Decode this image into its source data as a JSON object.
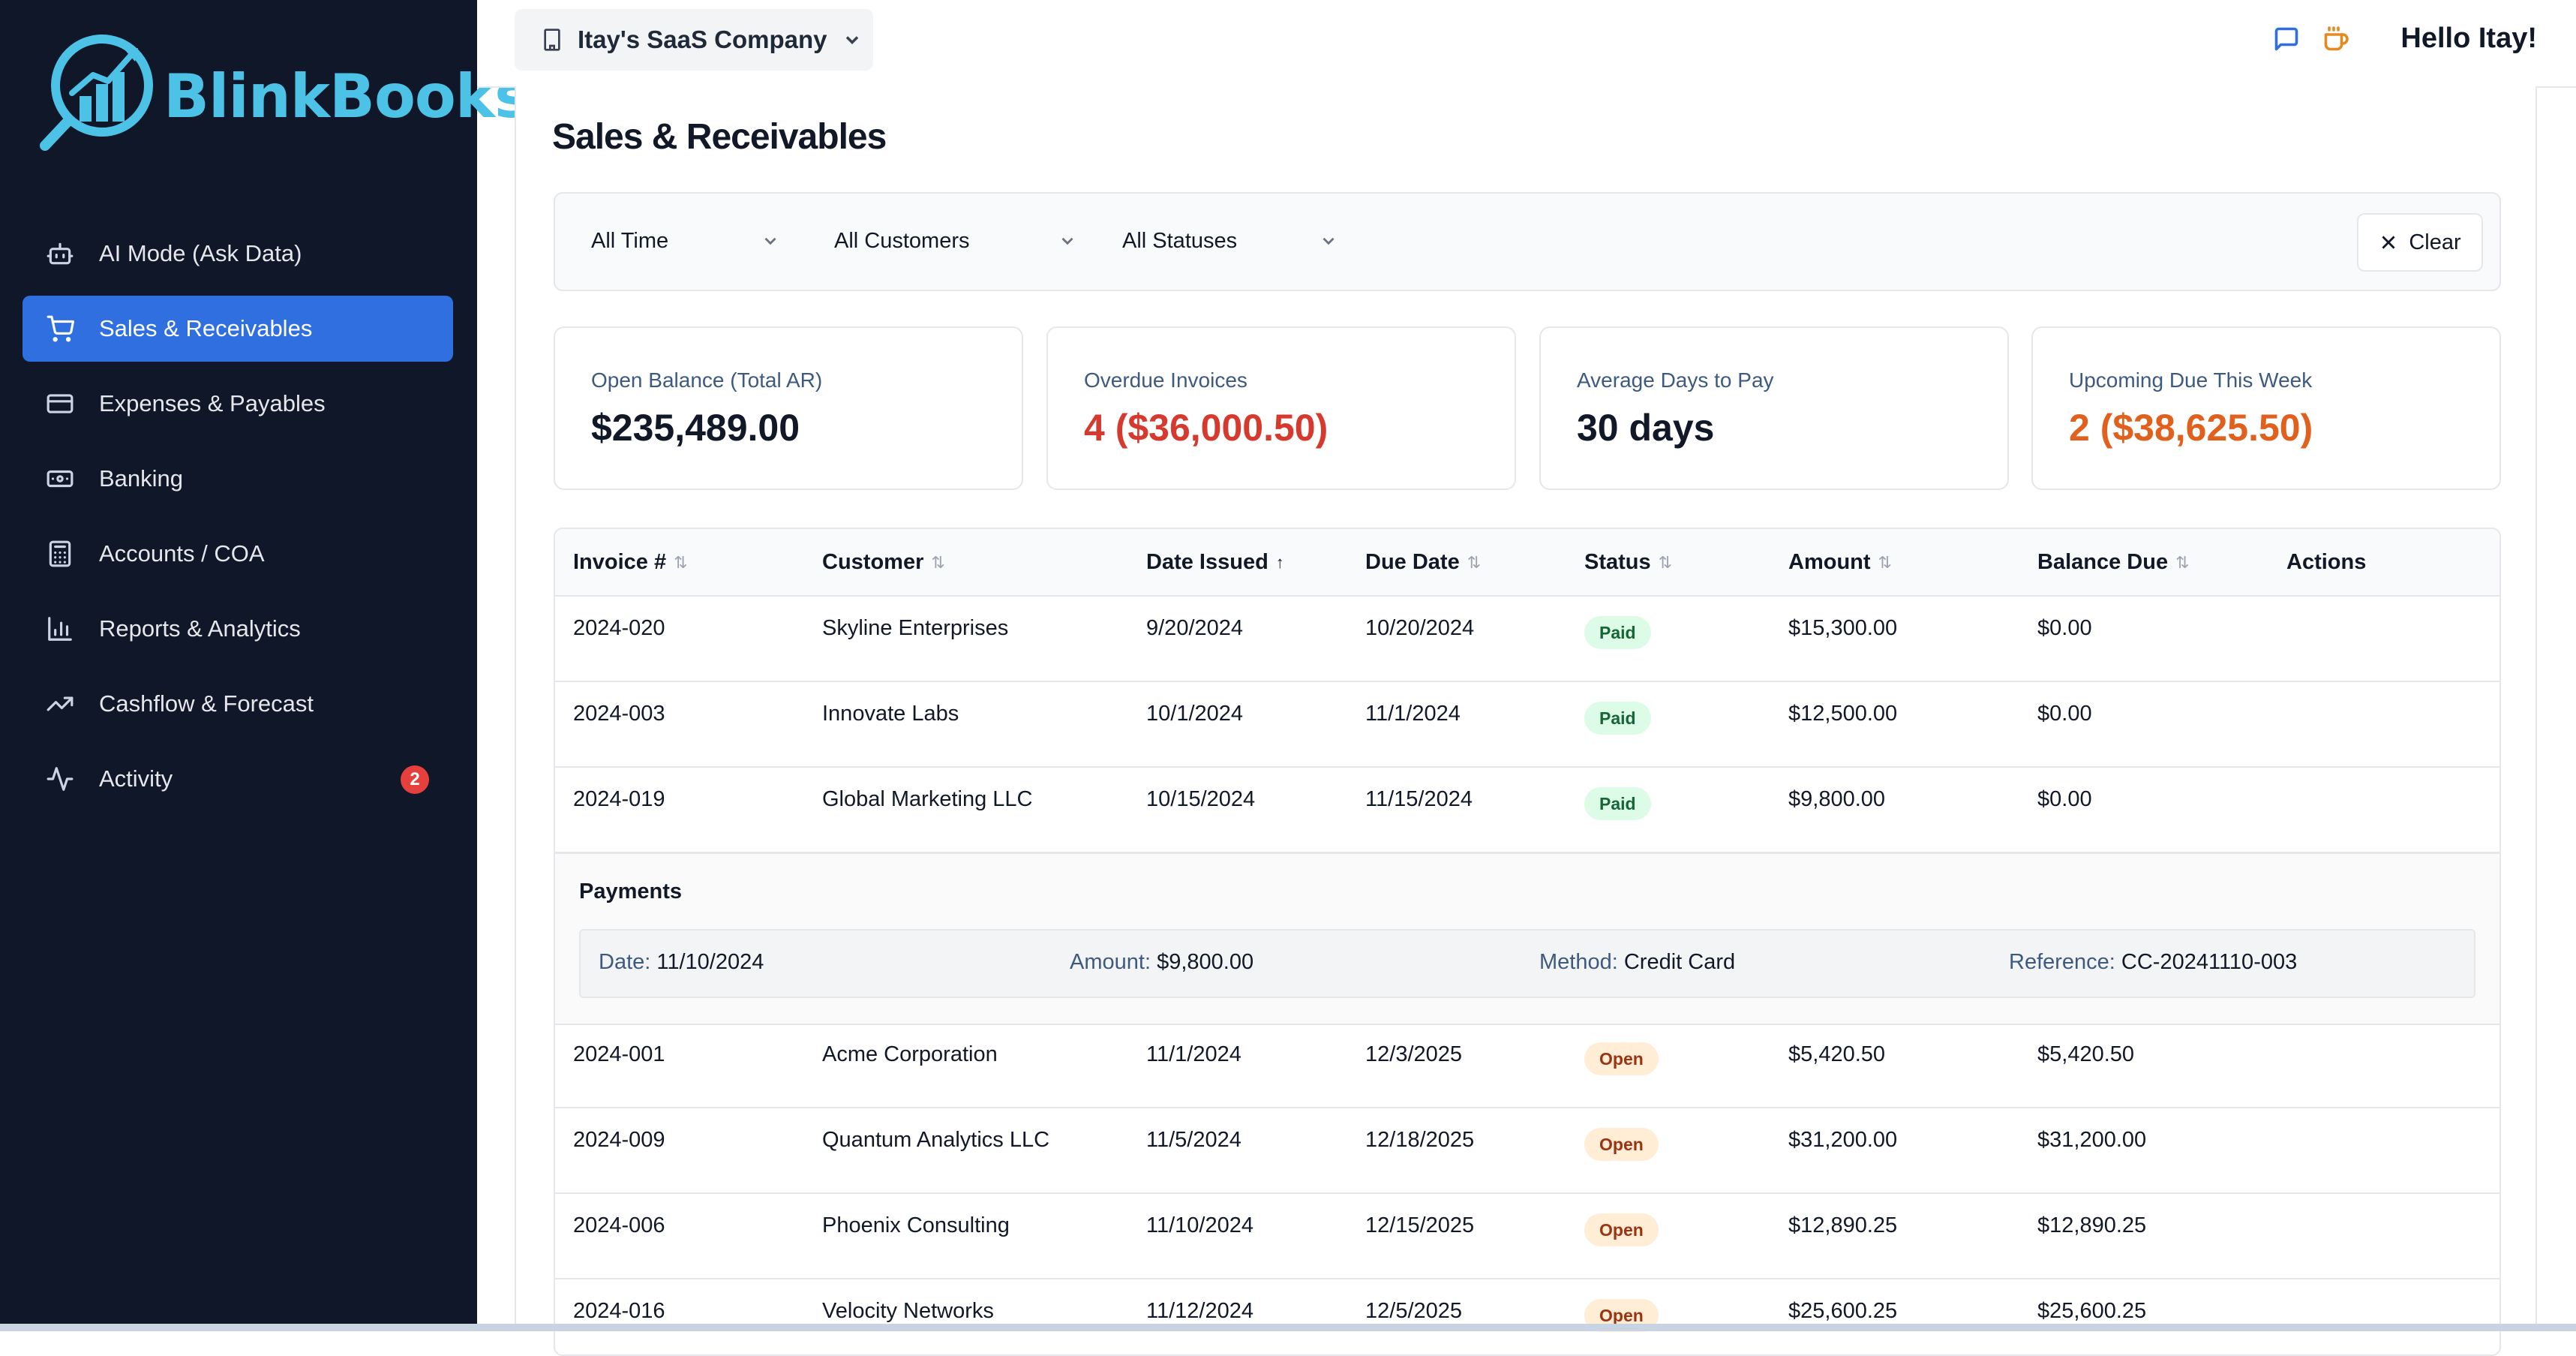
{
  "sidebar": {
    "logo_text": "BlinkBooks",
    "items": [
      {
        "label": "AI Mode (Ask Data)",
        "icon": "robot-icon"
      },
      {
        "label": "Sales & Receivables",
        "icon": "cart-icon",
        "active": true
      },
      {
        "label": "Expenses & Payables",
        "icon": "credit-card-icon"
      },
      {
        "label": "Banking",
        "icon": "banknote-icon"
      },
      {
        "label": "Accounts / COA",
        "icon": "calculator-icon"
      },
      {
        "label": "Reports & Analytics",
        "icon": "bar-chart-icon"
      },
      {
        "label": "Cashflow & Forecast",
        "icon": "trending-up-icon"
      },
      {
        "label": "Activity",
        "icon": "activity-icon",
        "badge": "2"
      }
    ]
  },
  "topbar": {
    "company": "Itay's SaaS Company",
    "greeting": "Hello Itay!"
  },
  "page": {
    "title": "Sales & Receivables",
    "filters": {
      "time": "All Time",
      "customers": "All Customers",
      "statuses": "All Statuses",
      "clear": "Clear"
    }
  },
  "kpis": [
    {
      "label": "Open Balance (Total AR)",
      "value": "$235,489.00"
    },
    {
      "label": "Overdue Invoices",
      "value": "4 ($36,000.50)",
      "color": "#d63a2f"
    },
    {
      "label": "Average Days to Pay",
      "value": "30 days"
    },
    {
      "label": "Upcoming Due This Week",
      "value": "2 ($38,625.50)",
      "color": "#e0601d"
    }
  ],
  "table": {
    "headers": {
      "invoice": "Invoice #",
      "customer": "Customer",
      "date_issued": "Date Issued",
      "due_date": "Due Date",
      "status": "Status",
      "amount": "Amount",
      "balance": "Balance Due",
      "actions": "Actions"
    },
    "rows": [
      {
        "invoice": "2024-020",
        "customer": "Skyline Enterprises",
        "issued": "9/20/2024",
        "due": "10/20/2024",
        "status": "Paid",
        "amount": "$15,300.00",
        "balance": "$0.00"
      },
      {
        "invoice": "2024-003",
        "customer": "Innovate Labs",
        "issued": "10/1/2024",
        "due": "11/1/2024",
        "status": "Paid",
        "amount": "$12,500.00",
        "balance": "$0.00"
      },
      {
        "invoice": "2024-019",
        "customer": "Global Marketing LLC",
        "issued": "10/15/2024",
        "due": "11/15/2024",
        "status": "Paid",
        "amount": "$9,800.00",
        "balance": "$0.00"
      },
      {
        "invoice": "2024-001",
        "customer": "Acme Corporation",
        "issued": "11/1/2024",
        "due": "12/3/2025",
        "status": "Open",
        "amount": "$5,420.50",
        "balance": "$5,420.50"
      },
      {
        "invoice": "2024-009",
        "customer": "Quantum Analytics LLC",
        "issued": "11/5/2024",
        "due": "12/18/2025",
        "status": "Open",
        "amount": "$31,200.00",
        "balance": "$31,200.00"
      },
      {
        "invoice": "2024-006",
        "customer": "Phoenix Consulting",
        "issued": "11/10/2024",
        "due": "12/15/2025",
        "status": "Open",
        "amount": "$12,890.25",
        "balance": "$12,890.25"
      },
      {
        "invoice": "2024-016",
        "customer": "Velocity Networks",
        "issued": "11/12/2024",
        "due": "12/5/2025",
        "status": "Open",
        "amount": "$25,600.25",
        "balance": "$25,600.25"
      }
    ],
    "payments": {
      "title": "Payments",
      "date_label": "Date:",
      "date": "11/10/2024",
      "amount_label": "Amount:",
      "amount": "$9,800.00",
      "method_label": "Method:",
      "method": "Credit Card",
      "reference_label": "Reference:",
      "reference": "CC-20241110-003"
    }
  }
}
